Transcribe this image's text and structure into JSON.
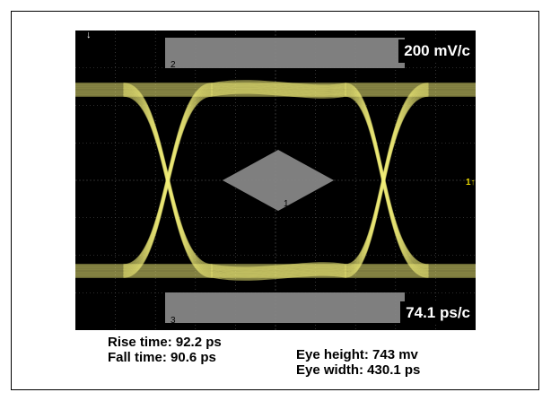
{
  "scope": {
    "vertical_scale": "200 mV/c",
    "horizontal_scale": "74.1 ps/c",
    "mask_labels": [
      "2",
      "1",
      "3"
    ],
    "trace_color": "#f4f07a",
    "mask_color": "#8a8a8a",
    "grid_color": "#5a5a5a",
    "ground_marker": "1↑"
  },
  "measurements": {
    "left": [
      "Rise time: 92.2 ps",
      "Fall time: 90.6 ps"
    ],
    "right": [
      "Eye height: 743 mv",
      "Eye width: 430.1 ps"
    ]
  }
}
